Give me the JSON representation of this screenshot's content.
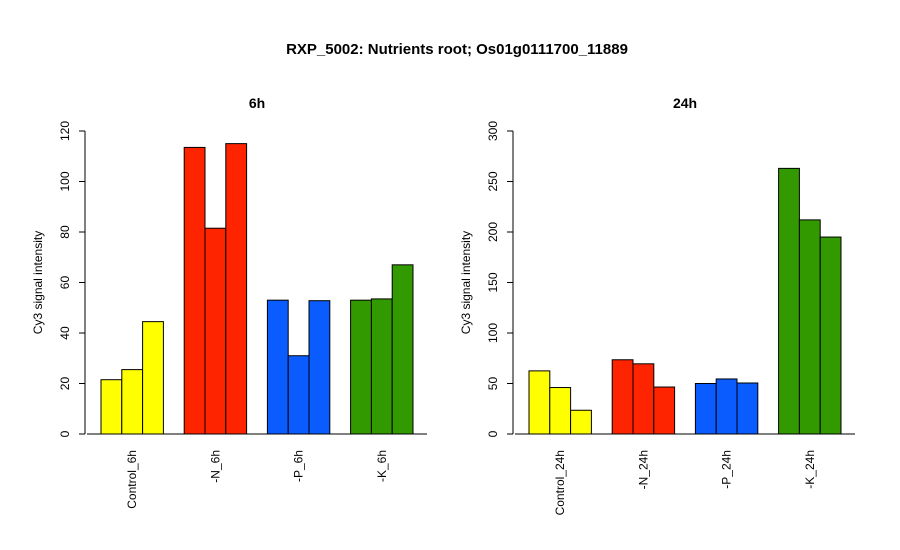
{
  "title": "RXP_5002: Nutrients root; Os01g0111700_11889",
  "chart_data": [
    {
      "type": "bar",
      "title": "6h",
      "ylabel": "Cy3 signal intensity",
      "ylim": [
        0,
        120
      ],
      "yticks": [
        0,
        20,
        40,
        60,
        80,
        100,
        120
      ],
      "groups": [
        {
          "label": "Control_6h",
          "color": "#ffff00",
          "values": [
            21.5,
            25.5,
            44.5
          ]
        },
        {
          "label": "-N_6h",
          "color": "#ff2400",
          "values": [
            113.5,
            81.5,
            115.0
          ]
        },
        {
          "label": "-P_6h",
          "color": "#0a5cff",
          "values": [
            53.0,
            31.0,
            52.8
          ]
        },
        {
          "label": "-K_6h",
          "color": "#339900",
          "values": [
            53.0,
            53.5,
            67.0
          ]
        }
      ]
    },
    {
      "type": "bar",
      "title": "24h",
      "ylabel": "Cy3 signal intensity",
      "ylim": [
        0,
        300
      ],
      "yticks": [
        0,
        50,
        100,
        150,
        200,
        250,
        300
      ],
      "groups": [
        {
          "label": "Control_24h",
          "color": "#ffff00",
          "values": [
            62.5,
            46.0,
            23.5
          ]
        },
        {
          "label": "-N_24h",
          "color": "#ff2400",
          "values": [
            73.5,
            69.5,
            46.5
          ]
        },
        {
          "label": "-P_24h",
          "color": "#0a5cff",
          "values": [
            50.0,
            54.5,
            50.5
          ]
        },
        {
          "label": "-K_24h",
          "color": "#339900",
          "values": [
            263.0,
            212.0,
            195.0
          ]
        }
      ]
    }
  ]
}
